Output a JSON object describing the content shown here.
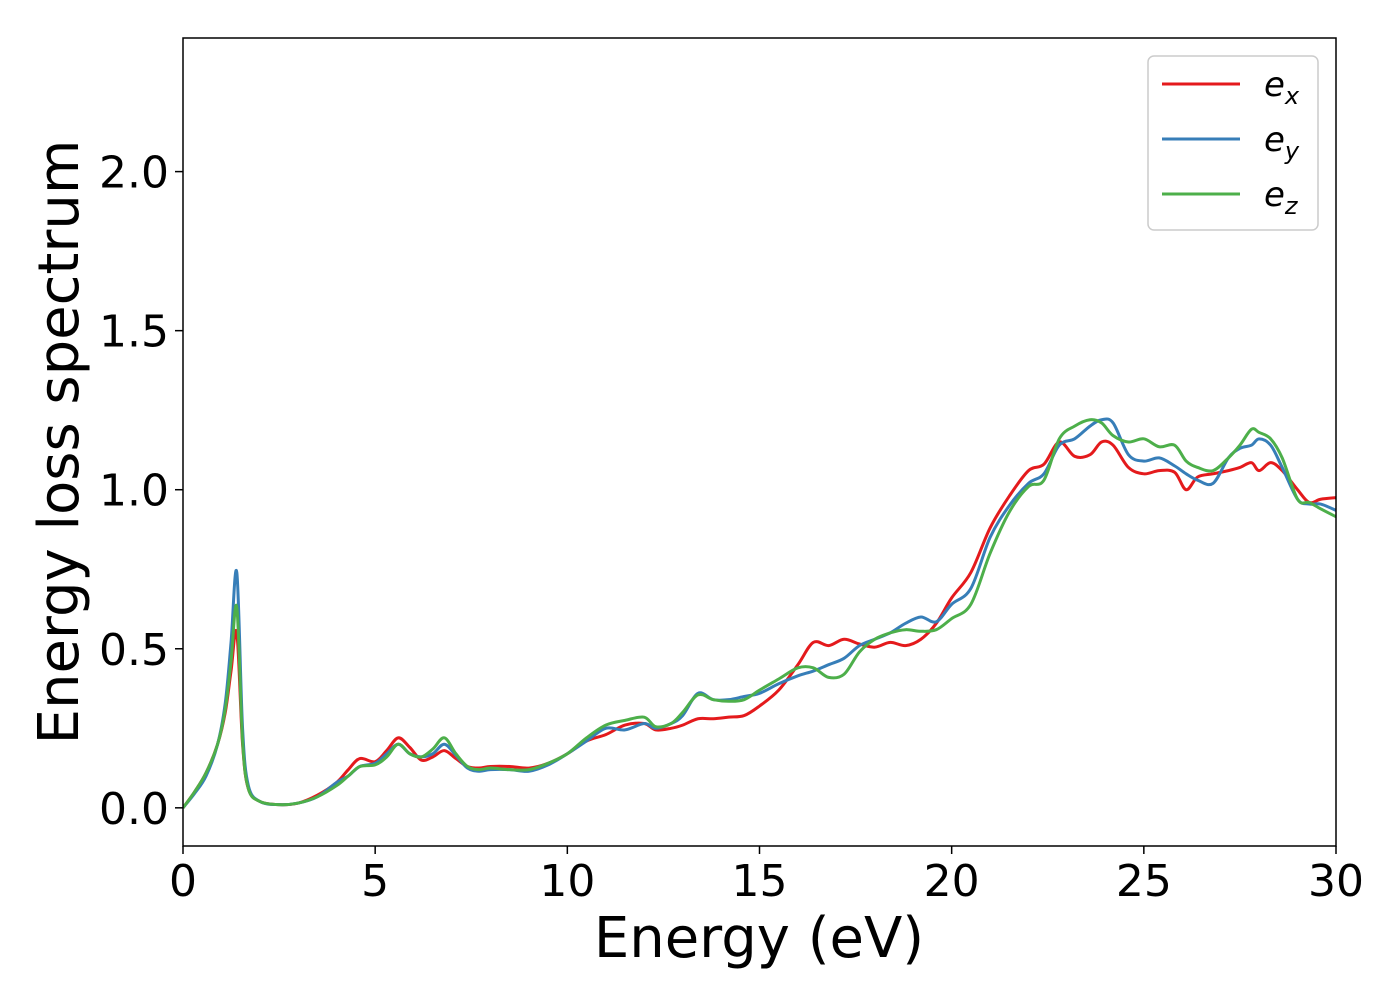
{
  "chart_data": {
    "type": "line",
    "title": "",
    "xlabel": "Energy (eV)",
    "ylabel": "Energy loss spectrum",
    "xlim": [
      0,
      30
    ],
    "ylim": [
      -0.12,
      2.42
    ],
    "xticks": [
      0,
      5,
      10,
      15,
      20,
      25,
      30
    ],
    "yticks": [
      0.0,
      0.5,
      1.0,
      1.5,
      2.0
    ],
    "xtick_labels": [
      "0",
      "5",
      "10",
      "15",
      "20",
      "25",
      "30"
    ],
    "ytick_labels": [
      "0.0",
      "0.5",
      "1.0",
      "1.5",
      "2.0"
    ],
    "grid": false,
    "legend": "top-right",
    "x": [
      0,
      0.3,
      0.6,
      0.9,
      1.1,
      1.25,
      1.4,
      1.55,
      1.7,
      2.0,
      2.5,
      3.0,
      3.5,
      4.0,
      4.3,
      4.6,
      5.0,
      5.3,
      5.6,
      5.9,
      6.2,
      6.5,
      6.8,
      7.1,
      7.4,
      7.7,
      8.0,
      8.5,
      9.0,
      9.5,
      10.0,
      10.5,
      11.0,
      11.5,
      12.0,
      12.3,
      12.7,
      13.0,
      13.4,
      13.8,
      14.2,
      14.6,
      15.0,
      15.5,
      16.0,
      16.4,
      16.8,
      17.2,
      17.6,
      18.0,
      18.4,
      18.8,
      19.2,
      19.6,
      20.0,
      20.5,
      21.0,
      21.5,
      22.0,
      22.4,
      22.8,
      23.2,
      23.6,
      23.9,
      24.2,
      24.6,
      25.0,
      25.4,
      25.8,
      26.1,
      26.4,
      26.8,
      27.2,
      27.5,
      27.8,
      28.0,
      28.3,
      28.6,
      29.0,
      29.3,
      29.6,
      30.0
    ],
    "series": [
      {
        "name": "e_x",
        "color": "#e41a1c",
        "values": [
          0.0,
          0.05,
          0.11,
          0.2,
          0.3,
          0.43,
          0.55,
          0.2,
          0.06,
          0.02,
          0.01,
          0.015,
          0.04,
          0.08,
          0.12,
          0.155,
          0.145,
          0.18,
          0.22,
          0.19,
          0.15,
          0.16,
          0.18,
          0.155,
          0.13,
          0.125,
          0.13,
          0.13,
          0.125,
          0.14,
          0.17,
          0.21,
          0.23,
          0.26,
          0.265,
          0.245,
          0.25,
          0.26,
          0.28,
          0.28,
          0.285,
          0.29,
          0.32,
          0.37,
          0.45,
          0.52,
          0.51,
          0.53,
          0.515,
          0.505,
          0.52,
          0.51,
          0.53,
          0.58,
          0.66,
          0.74,
          0.88,
          0.98,
          1.06,
          1.08,
          1.15,
          1.105,
          1.11,
          1.15,
          1.14,
          1.07,
          1.05,
          1.06,
          1.055,
          1.0,
          1.04,
          1.05,
          1.06,
          1.07,
          1.085,
          1.06,
          1.085,
          1.06,
          1.0,
          0.96,
          0.97,
          0.975
        ]
      },
      {
        "name": "e_y",
        "color": "#377eb8",
        "values": [
          0.0,
          0.045,
          0.1,
          0.2,
          0.33,
          0.52,
          0.74,
          0.25,
          0.07,
          0.02,
          0.01,
          0.015,
          0.035,
          0.08,
          0.1,
          0.13,
          0.14,
          0.17,
          0.2,
          0.17,
          0.16,
          0.17,
          0.2,
          0.165,
          0.125,
          0.115,
          0.12,
          0.12,
          0.115,
          0.135,
          0.17,
          0.21,
          0.25,
          0.245,
          0.265,
          0.25,
          0.265,
          0.29,
          0.36,
          0.34,
          0.34,
          0.35,
          0.36,
          0.39,
          0.415,
          0.43,
          0.45,
          0.47,
          0.51,
          0.53,
          0.55,
          0.58,
          0.6,
          0.585,
          0.64,
          0.69,
          0.85,
          0.95,
          1.02,
          1.05,
          1.14,
          1.16,
          1.2,
          1.22,
          1.21,
          1.11,
          1.09,
          1.1,
          1.075,
          1.05,
          1.03,
          1.02,
          1.1,
          1.13,
          1.14,
          1.16,
          1.14,
          1.07,
          0.97,
          0.955,
          0.955,
          0.935
        ]
      },
      {
        "name": "e_z",
        "color": "#4daf4a",
        "values": [
          0.0,
          0.05,
          0.11,
          0.2,
          0.31,
          0.46,
          0.63,
          0.21,
          0.06,
          0.02,
          0.01,
          0.015,
          0.035,
          0.07,
          0.1,
          0.13,
          0.135,
          0.16,
          0.2,
          0.17,
          0.16,
          0.185,
          0.22,
          0.17,
          0.13,
          0.12,
          0.125,
          0.12,
          0.12,
          0.14,
          0.17,
          0.22,
          0.26,
          0.275,
          0.285,
          0.255,
          0.265,
          0.3,
          0.355,
          0.34,
          0.335,
          0.34,
          0.37,
          0.405,
          0.44,
          0.44,
          0.41,
          0.42,
          0.49,
          0.53,
          0.55,
          0.56,
          0.555,
          0.56,
          0.595,
          0.64,
          0.8,
          0.93,
          1.01,
          1.03,
          1.16,
          1.2,
          1.22,
          1.21,
          1.17,
          1.15,
          1.16,
          1.135,
          1.14,
          1.09,
          1.07,
          1.06,
          1.1,
          1.14,
          1.19,
          1.18,
          1.16,
          1.1,
          0.97,
          0.96,
          0.94,
          0.915
        ]
      }
    ]
  },
  "legend_labels": {
    "e_x": {
      "base": "e",
      "sub": "x"
    },
    "e_y": {
      "base": "e",
      "sub": "y"
    },
    "e_z": {
      "base": "e",
      "sub": "z"
    }
  }
}
